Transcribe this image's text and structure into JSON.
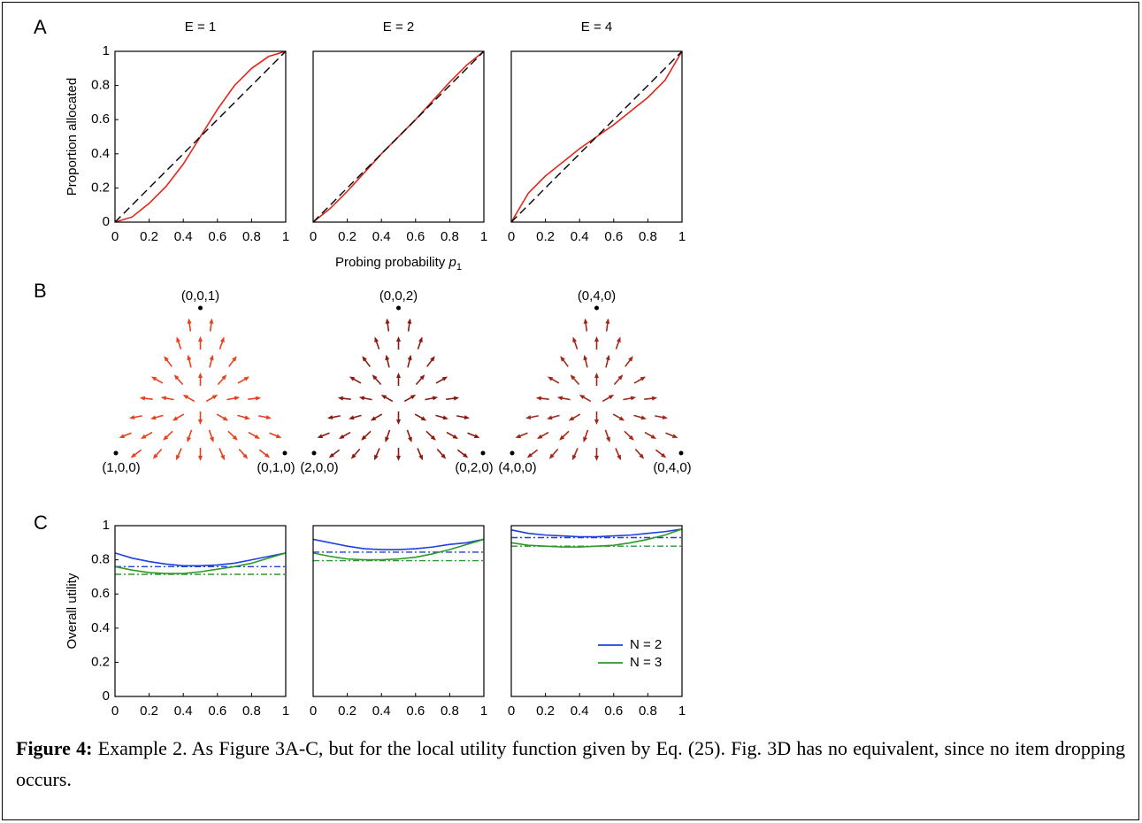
{
  "panel_labels": [
    "A",
    "B",
    "C"
  ],
  "chart_data": [
    {
      "type": "line",
      "title": "E = 1",
      "ylabel": "Proportion allocated",
      "xlim": [
        0,
        1
      ],
      "ylim": [
        0,
        1
      ],
      "xticks": [
        0,
        0.2,
        0.4,
        0.6,
        0.8,
        1
      ],
      "yticks": [
        0,
        0.2,
        0.4,
        0.6,
        0.8,
        1
      ],
      "series": [
        {
          "color": "#e32619",
          "style": "solid",
          "x": [
            0,
            0.1,
            0.2,
            0.3,
            0.4,
            0.5,
            0.6,
            0.7,
            0.8,
            0.9,
            1
          ],
          "values": [
            0,
            0.03,
            0.11,
            0.21,
            0.34,
            0.5,
            0.66,
            0.8,
            0.9,
            0.97,
            1
          ]
        },
        {
          "color": "#000000",
          "style": "dashed",
          "x": [
            0,
            1
          ],
          "values": [
            0,
            1
          ]
        }
      ]
    },
    {
      "type": "line",
      "title": "E = 2",
      "xlabel": {
        "text": "Probing probability ",
        "var": "p",
        "sub": "1"
      },
      "xlim": [
        0,
        1
      ],
      "ylim": [
        0,
        1
      ],
      "xticks": [
        0,
        0.2,
        0.4,
        0.6,
        0.8,
        1
      ],
      "series": [
        {
          "color": "#e32619",
          "style": "solid",
          "x": [
            0,
            0.1,
            0.2,
            0.3,
            0.4,
            0.5,
            0.6,
            0.7,
            0.8,
            0.9,
            1
          ],
          "values": [
            0,
            0.08,
            0.18,
            0.29,
            0.4,
            0.5,
            0.6,
            0.71,
            0.82,
            0.92,
            1
          ]
        },
        {
          "color": "#000000",
          "style": "dashed",
          "x": [
            0,
            1
          ],
          "values": [
            0,
            1
          ]
        }
      ]
    },
    {
      "type": "line",
      "title": "E = 4",
      "xlim": [
        0,
        1
      ],
      "ylim": [
        0,
        1
      ],
      "xticks": [
        0,
        0.2,
        0.4,
        0.6,
        0.8,
        1
      ],
      "series": [
        {
          "color": "#e32619",
          "style": "solid",
          "x": [
            0,
            0.1,
            0.2,
            0.3,
            0.4,
            0.5,
            0.6,
            0.7,
            0.8,
            0.9,
            1
          ],
          "values": [
            0,
            0.17,
            0.27,
            0.35,
            0.43,
            0.5,
            0.57,
            0.65,
            0.73,
            0.83,
            1
          ]
        },
        {
          "color": "#000000",
          "style": "dashed",
          "x": [
            0,
            1
          ],
          "values": [
            0,
            1
          ]
        }
      ]
    },
    {
      "type": "ternary",
      "color": "#e8401c",
      "vertex_labels": {
        "top": "(0,0,1)",
        "left": "(1,0,0)",
        "right": "(0,1,0)"
      }
    },
    {
      "type": "ternary",
      "color": "#8b1a10",
      "vertex_labels": {
        "top": "(0,0,2)",
        "left": "(2,0,0)",
        "right": "(0,2,0)"
      }
    },
    {
      "type": "ternary",
      "color": "#a0281a",
      "vertex_labels": {
        "top": "(0,4,0)",
        "left": "(4,0,0)",
        "right": "(0,4,0)"
      }
    },
    {
      "type": "line",
      "ylabel": "Overall utility",
      "xlim": [
        0,
        1
      ],
      "ylim": [
        0,
        1
      ],
      "xticks": [
        0,
        0.2,
        0.4,
        0.6,
        0.8,
        1
      ],
      "yticks": [
        0,
        0.2,
        0.4,
        0.6,
        0.8,
        1
      ],
      "series": [
        {
          "color": "#1f3fe0",
          "style": "solid",
          "x": [
            0,
            0.1,
            0.2,
            0.3,
            0.4,
            0.5,
            0.6,
            0.7,
            0.8,
            0.9,
            1
          ],
          "values": [
            0.84,
            0.81,
            0.79,
            0.775,
            0.765,
            0.765,
            0.77,
            0.78,
            0.8,
            0.82,
            0.84
          ]
        },
        {
          "color": "#1f3fe0",
          "style": "dashdot",
          "x": [
            0,
            1
          ],
          "values": [
            0.76,
            0.76
          ]
        },
        {
          "color": "#2a9a2a",
          "style": "solid",
          "x": [
            0,
            0.1,
            0.2,
            0.3,
            0.4,
            0.5,
            0.6,
            0.7,
            0.8,
            0.9,
            1
          ],
          "values": [
            0.76,
            0.74,
            0.725,
            0.72,
            0.72,
            0.73,
            0.745,
            0.76,
            0.78,
            0.81,
            0.84
          ]
        },
        {
          "color": "#2a9a2a",
          "style": "dashdot",
          "x": [
            0,
            1
          ],
          "values": [
            0.715,
            0.715
          ]
        }
      ]
    },
    {
      "type": "line",
      "xlabel": {
        "text": "Probing probability ",
        "var": "p",
        "sub": "1"
      },
      "xlim": [
        0,
        1
      ],
      "ylim": [
        0,
        1
      ],
      "xticks": [
        0,
        0.2,
        0.4,
        0.6,
        0.8,
        1
      ],
      "series": [
        {
          "color": "#1f3fe0",
          "style": "solid",
          "x": [
            0,
            0.1,
            0.2,
            0.3,
            0.4,
            0.5,
            0.6,
            0.7,
            0.8,
            0.9,
            1
          ],
          "values": [
            0.92,
            0.9,
            0.88,
            0.865,
            0.86,
            0.86,
            0.865,
            0.875,
            0.89,
            0.9,
            0.92
          ]
        },
        {
          "color": "#1f3fe0",
          "style": "dashdot",
          "x": [
            0,
            1
          ],
          "values": [
            0.845,
            0.845
          ]
        },
        {
          "color": "#2a9a2a",
          "style": "solid",
          "x": [
            0,
            0.1,
            0.2,
            0.3,
            0.4,
            0.5,
            0.6,
            0.7,
            0.8,
            0.9,
            1
          ],
          "values": [
            0.84,
            0.82,
            0.805,
            0.8,
            0.8,
            0.805,
            0.815,
            0.835,
            0.86,
            0.89,
            0.92
          ]
        },
        {
          "color": "#2a9a2a",
          "style": "dashdot",
          "x": [
            0,
            1
          ],
          "values": [
            0.795,
            0.795
          ]
        }
      ]
    },
    {
      "type": "line",
      "legend": "lower right",
      "xlim": [
        0,
        1
      ],
      "ylim": [
        0,
        1
      ],
      "xticks": [
        0,
        0.2,
        0.4,
        0.6,
        0.8,
        1
      ],
      "series": [
        {
          "name": "N = 2",
          "color": "#1f3fe0",
          "style": "solid",
          "x": [
            0,
            0.1,
            0.2,
            0.3,
            0.4,
            0.5,
            0.6,
            0.7,
            0.8,
            0.9,
            1
          ],
          "values": [
            0.975,
            0.955,
            0.945,
            0.94,
            0.935,
            0.935,
            0.94,
            0.945,
            0.955,
            0.965,
            0.98
          ]
        },
        {
          "color": "#1f3fe0",
          "style": "dashdot",
          "x": [
            0,
            1
          ],
          "values": [
            0.93,
            0.93
          ]
        },
        {
          "name": "N = 3",
          "color": "#2a9a2a",
          "style": "solid",
          "x": [
            0,
            0.1,
            0.2,
            0.3,
            0.4,
            0.5,
            0.6,
            0.7,
            0.8,
            0.9,
            1
          ],
          "values": [
            0.9,
            0.885,
            0.88,
            0.875,
            0.875,
            0.88,
            0.885,
            0.9,
            0.92,
            0.945,
            0.98
          ]
        },
        {
          "color": "#2a9a2a",
          "style": "dashdot",
          "x": [
            0,
            1
          ],
          "values": [
            0.88,
            0.88
          ]
        }
      ]
    }
  ],
  "caption": {
    "label": "Figure 4:",
    "text": " Example 2. As Figure 3A-C, but for the local utility function given by Eq. (25). Fig. 3D has no equivalent, since no item dropping occurs."
  }
}
